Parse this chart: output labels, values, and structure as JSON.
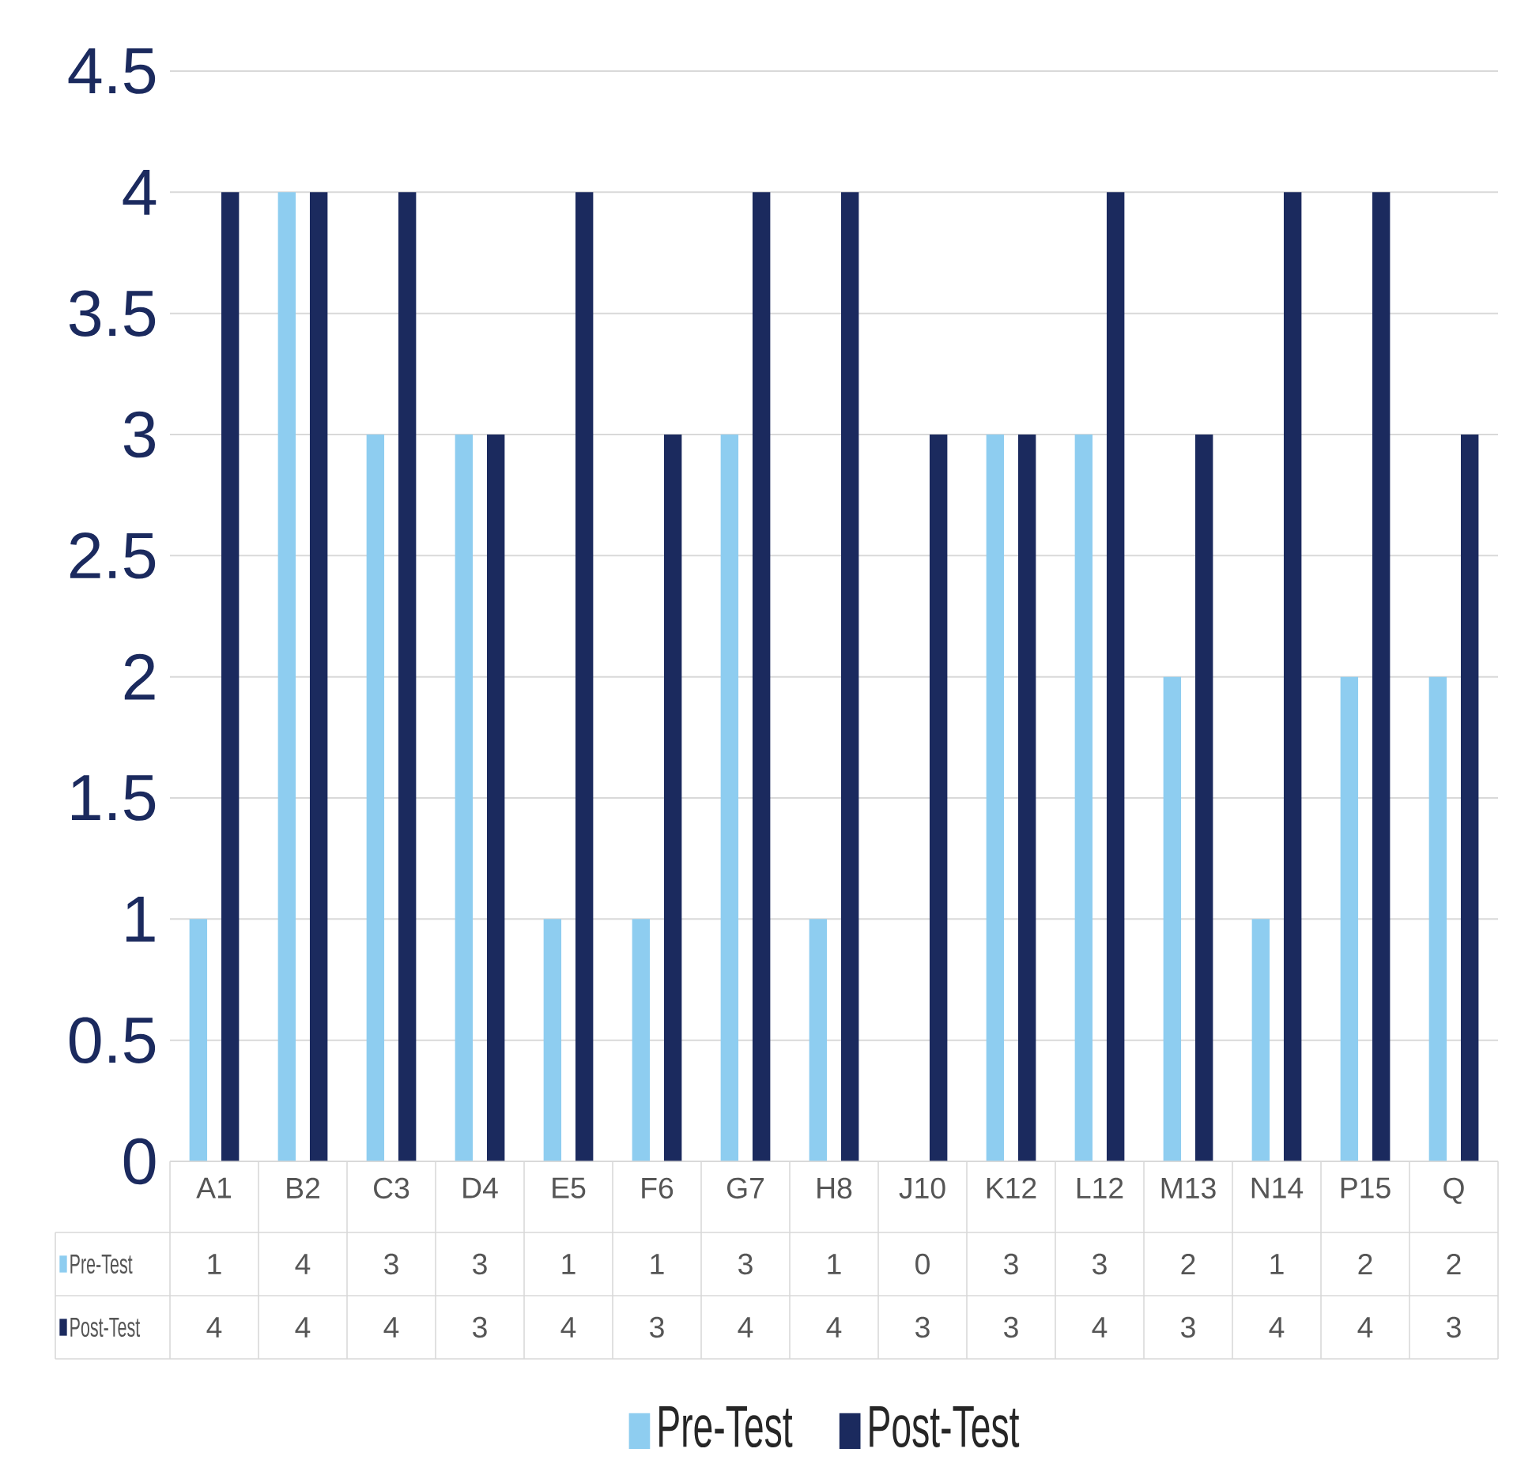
{
  "chart_data": {
    "type": "bar",
    "categories": [
      "A1",
      "B2",
      "C3",
      "D4",
      "E5",
      "F6",
      "G7",
      "H8",
      "J10",
      "K12",
      "L12",
      "M13",
      "N14",
      "P15",
      "Q"
    ],
    "series": [
      {
        "name": "Pre-Test",
        "color": "#8ecdf0",
        "values": [
          1,
          4,
          3,
          3,
          1,
          1,
          3,
          1,
          0,
          3,
          3,
          2,
          1,
          2,
          2
        ]
      },
      {
        "name": "Post-Test",
        "color": "#1b2a5e",
        "values": [
          4,
          4,
          4,
          3,
          4,
          3,
          4,
          4,
          3,
          3,
          4,
          3,
          4,
          4,
          3
        ]
      }
    ],
    "ylim": [
      0,
      4.5
    ],
    "yticks": [
      0,
      0.5,
      1,
      1.5,
      2,
      2.5,
      3,
      3.5,
      4,
      4.5
    ],
    "grid": "y",
    "legend": "bottom",
    "data_labels": true
  }
}
